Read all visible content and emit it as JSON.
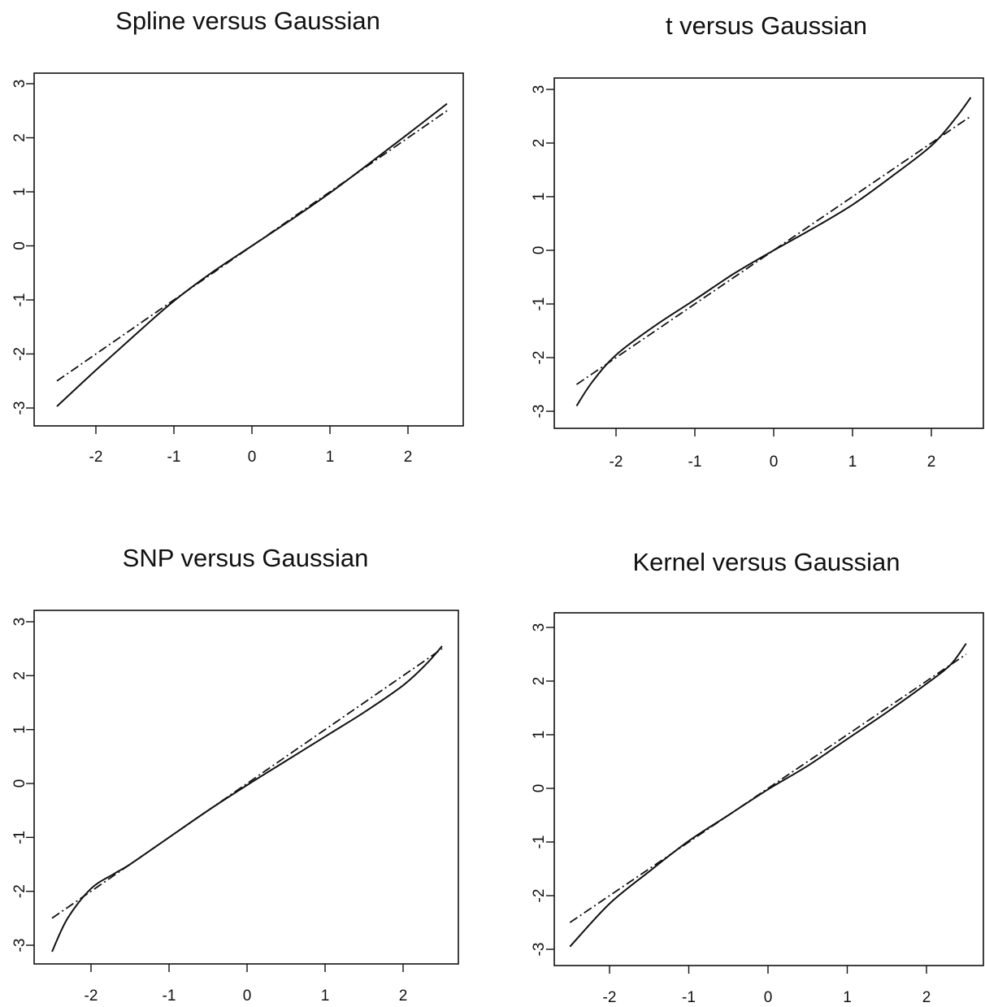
{
  "chart_data": [
    {
      "type": "line",
      "title": "Spline versus Gaussian",
      "xlabel": "",
      "ylabel": "",
      "xlim": [
        -2.5,
        2.5
      ],
      "ylim": [
        -3,
        3
      ],
      "xticks": [
        "-2",
        "-1",
        "0",
        "1",
        "2"
      ],
      "yticks": [
        "-3",
        "-2",
        "-1",
        "0",
        "1",
        "2",
        "3"
      ],
      "series": [
        {
          "style": "solid",
          "x": [
            -2.5,
            -2.0,
            -1.5,
            -1.0,
            -0.5,
            0.0,
            0.5,
            1.0,
            1.5,
            2.0,
            2.5
          ],
          "y": [
            -2.97,
            -2.3,
            -1.65,
            -1.02,
            -0.48,
            0.0,
            0.48,
            0.98,
            1.52,
            2.07,
            2.63
          ]
        },
        {
          "style": "dash-dot",
          "x": [
            -2.5,
            2.5
          ],
          "y": [
            -2.5,
            2.5
          ]
        }
      ]
    },
    {
      "type": "line",
      "title": "t versus Gaussian",
      "xlabel": "",
      "ylabel": "",
      "xlim": [
        -2.5,
        2.5
      ],
      "ylim": [
        -3,
        3
      ],
      "xticks": [
        "-2",
        "-1",
        "0",
        "1",
        "2"
      ],
      "yticks": [
        "-3",
        "-2",
        "-1",
        "0",
        "1",
        "2",
        "3"
      ],
      "series": [
        {
          "style": "solid",
          "x": [
            -2.5,
            -2.3,
            -2.0,
            -1.5,
            -1.0,
            -0.5,
            0.0,
            0.5,
            1.0,
            1.5,
            2.0,
            2.3,
            2.5
          ],
          "y": [
            -2.9,
            -2.45,
            -1.95,
            -1.4,
            -0.92,
            -0.43,
            0.0,
            0.41,
            0.85,
            1.38,
            1.95,
            2.45,
            2.85
          ]
        },
        {
          "style": "dash-dot",
          "x": [
            -2.5,
            2.5
          ],
          "y": [
            -2.5,
            2.5
          ]
        }
      ]
    },
    {
      "type": "line",
      "title": "SNP versus Gaussian",
      "xlabel": "",
      "ylabel": "",
      "xlim": [
        -2.5,
        2.5
      ],
      "ylim": [
        -3,
        3
      ],
      "xticks": [
        "-2",
        "-1",
        "0",
        "1",
        "2"
      ],
      "yticks": [
        "-3",
        "-2",
        "-1",
        "0",
        "1",
        "2",
        "3"
      ],
      "series": [
        {
          "style": "solid",
          "x": [
            -2.5,
            -2.3,
            -2.0,
            -1.7,
            -1.5,
            -1.0,
            -0.5,
            0.0,
            0.5,
            1.0,
            1.5,
            2.0,
            2.3,
            2.5
          ],
          "y": [
            -3.12,
            -2.5,
            -1.95,
            -1.67,
            -1.5,
            -1.0,
            -0.5,
            -0.03,
            0.42,
            0.87,
            1.32,
            1.82,
            2.22,
            2.55
          ]
        },
        {
          "style": "dash-dot",
          "x": [
            -2.5,
            2.5
          ],
          "y": [
            -2.5,
            2.5
          ]
        }
      ]
    },
    {
      "type": "line",
      "title": "Kernel versus Gaussian",
      "xlabel": "",
      "ylabel": "",
      "xlim": [
        -2.5,
        2.5
      ],
      "ylim": [
        -3,
        3
      ],
      "xticks": [
        "-2",
        "-1",
        "0",
        "1",
        "2"
      ],
      "yticks": [
        "-3",
        "-2",
        "-1",
        "0",
        "1",
        "2",
        "3"
      ],
      "series": [
        {
          "style": "solid",
          "x": [
            -2.5,
            -2.0,
            -1.5,
            -1.0,
            -0.5,
            0.0,
            0.5,
            1.0,
            1.5,
            2.0,
            2.3,
            2.5
          ],
          "y": [
            -2.95,
            -2.15,
            -1.55,
            -0.98,
            -0.5,
            -0.02,
            0.42,
            0.92,
            1.42,
            1.95,
            2.3,
            2.7
          ]
        },
        {
          "style": "dash-dot",
          "x": [
            -2.5,
            2.5
          ],
          "y": [
            -2.5,
            2.5
          ]
        }
      ]
    }
  ]
}
